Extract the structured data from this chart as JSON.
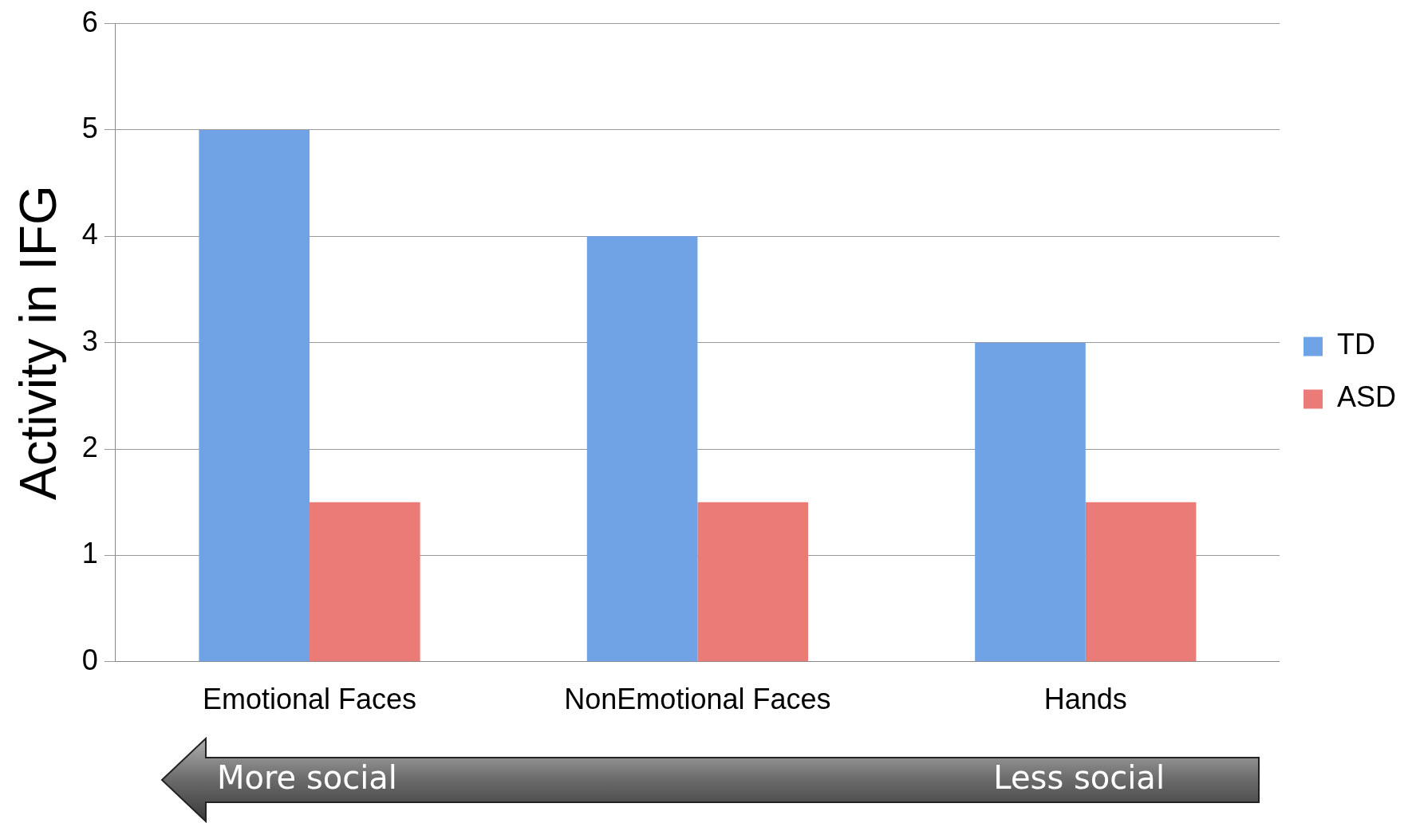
{
  "chart_data": {
    "type": "bar",
    "ylabel": "Activity in IFG",
    "categories": [
      "Emotional Faces",
      "NonEmotional Faces",
      "Hands"
    ],
    "series": [
      {
        "name": "TD",
        "color": "#6fa3e6",
        "values": [
          5,
          4,
          3
        ]
      },
      {
        "name": "ASD",
        "color": "#ea7b76",
        "values": [
          1.5,
          1.5,
          1.5
        ]
      }
    ],
    "ylim": [
      0,
      6
    ],
    "yticks": [
      0,
      1,
      2,
      3,
      4,
      5,
      6
    ],
    "grid": "y",
    "legend": "right",
    "annotations": [
      "More social",
      "Less social"
    ]
  }
}
